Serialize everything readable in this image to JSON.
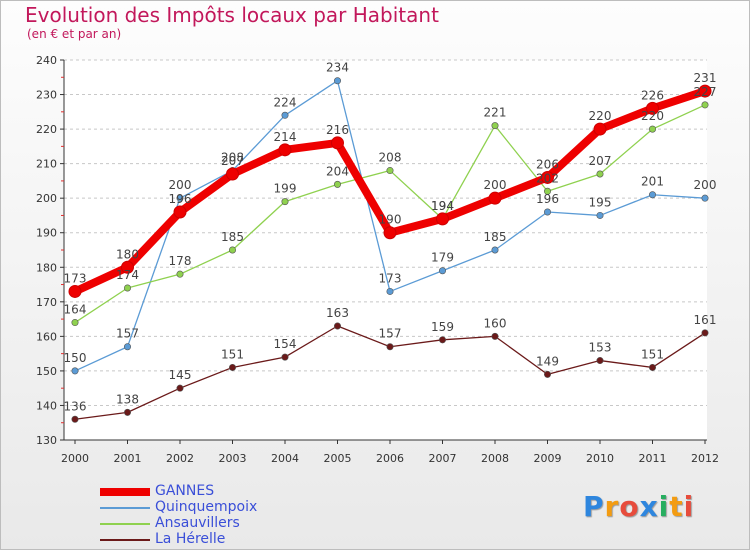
{
  "chart_data": {
    "type": "line",
    "title": "Evolution des Impôts locaux par Habitant",
    "subtitle": "(en € et par an)",
    "x": [
      "2000",
      "2001",
      "2002",
      "2003",
      "2004",
      "2005",
      "2006",
      "2007",
      "2008",
      "2009",
      "2010",
      "2011",
      "2012"
    ],
    "ylim": [
      130,
      240
    ],
    "yticks": [
      130,
      140,
      150,
      160,
      170,
      180,
      190,
      200,
      210,
      220,
      230,
      240
    ],
    "series": [
      {
        "name": "GANNES",
        "color": "#ee0000",
        "values": [
          173,
          180,
          196,
          207,
          214,
          216,
          190,
          194,
          200,
          206,
          220,
          226,
          231
        ]
      },
      {
        "name": "Quinquempoix",
        "color": "#5b9bd5",
        "values": [
          150,
          157,
          200,
          208,
          224,
          234,
          173,
          179,
          185,
          196,
          195,
          201,
          200
        ]
      },
      {
        "name": "Ansauvillers",
        "color": "#8fd14f",
        "values": [
          164,
          174,
          178,
          185,
          199,
          204,
          208,
          194,
          221,
          202,
          207,
          220,
          227
        ]
      },
      {
        "name": "La Hérelle",
        "color": "#6b1a1a",
        "values": [
          136,
          138,
          145,
          151,
          154,
          163,
          157,
          159,
          160,
          149,
          153,
          151,
          161
        ]
      }
    ]
  },
  "logo": {
    "letters": [
      "P",
      "r",
      "o",
      "x",
      "i",
      "t",
      "i"
    ],
    "colors": [
      "#2e86de",
      "#f39c12",
      "#e74c3c",
      "#2e86de",
      "#27ae60",
      "#f39c12",
      "#e74c3c"
    ]
  }
}
